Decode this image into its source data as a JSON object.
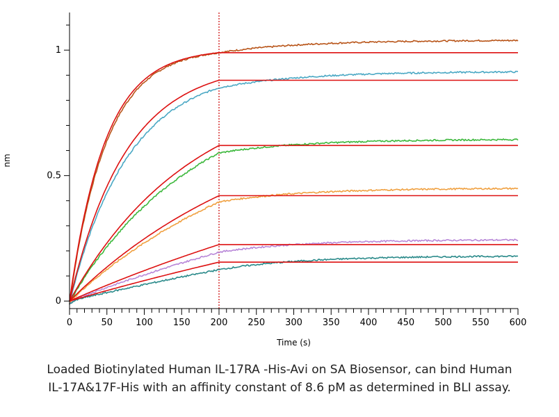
{
  "chart_data": {
    "type": "line",
    "title": "",
    "xlabel": "Time (s)",
    "ylabel": "nm",
    "xlim": [
      0,
      600
    ],
    "ylim": [
      -0.03,
      1.15
    ],
    "x_ticks": [
      0,
      50,
      100,
      150,
      200,
      250,
      300,
      350,
      400,
      450,
      500,
      550,
      600
    ],
    "y_ticks": [
      0,
      0.5,
      1
    ],
    "y_tick_labels": [
      "0",
      "0.5",
      "1"
    ],
    "association_end_time": 200,
    "divider_color": "#cc0000",
    "fit_color": "#dd1111",
    "series": [
      {
        "color": "#b85418",
        "measured_plateau": 0.99,
        "measured_end": 1.04,
        "fit_plateau": 0.99,
        "rate": 0.02
      },
      {
        "color": "#4aa8c4",
        "measured_plateau": 0.85,
        "measured_end": 0.915,
        "fit_plateau": 0.88,
        "rate": 0.0125
      },
      {
        "color": "#3cb83c",
        "measured_plateau": 0.59,
        "measured_end": 0.645,
        "fit_plateau": 0.62,
        "rate": 0.0058
      },
      {
        "color": "#f0a040",
        "measured_plateau": 0.395,
        "measured_end": 0.45,
        "fit_plateau": 0.42,
        "rate": 0.0035
      },
      {
        "color": "#b887d8",
        "measured_plateau": 0.195,
        "measured_end": 0.245,
        "fit_plateau": 0.225,
        "rate": 0.0015
      },
      {
        "color": "#2a8a8a",
        "measured_plateau": 0.125,
        "measured_end": 0.18,
        "fit_plateau": 0.155,
        "rate": 0.001
      }
    ]
  },
  "caption": {
    "line1": "Loaded Biotinylated Human IL-17RA -His-Avi on SA Biosensor, can bind Human",
    "line2": "IL-17A&17F-His with an affinity constant of 8.6 pM as determined in BLI assay."
  }
}
